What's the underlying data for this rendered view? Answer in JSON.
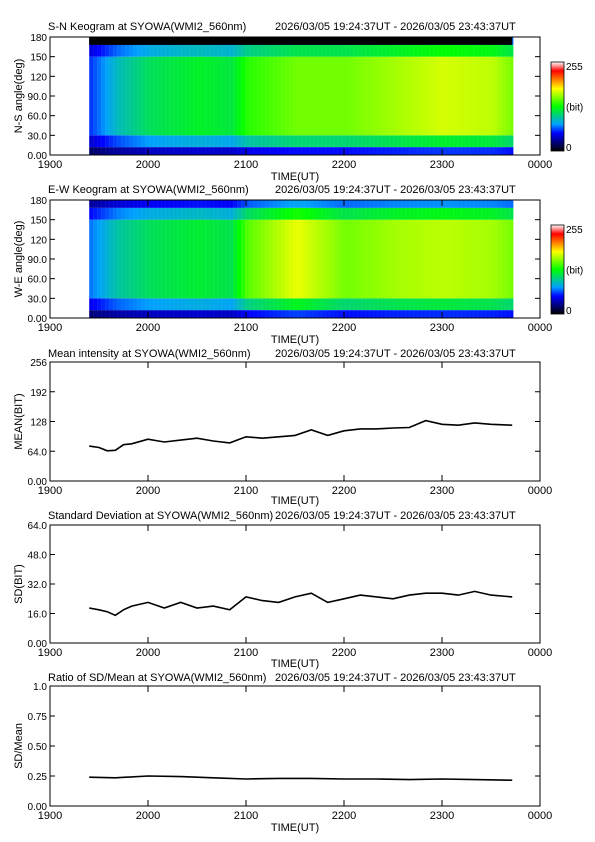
{
  "meta": {
    "station": "SYOWA(WMI2_560nm)",
    "time_range": "2026/03/05 19:24:37UT - 2026/03/05 23:43:37UT"
  },
  "colorbar": {
    "max_label": "255",
    "unit_label": "(bit)",
    "min_label": "0",
    "stops": [
      "#000000",
      "#000080",
      "#0000ff",
      "#00a0ff",
      "#00d080",
      "#00ff00",
      "#80ff00",
      "#ffff00",
      "#ff8000",
      "#ff0000",
      "#ffffff"
    ]
  },
  "x_axis": {
    "ticks": [
      "1900",
      "2000",
      "2100",
      "2200",
      "2300",
      "0000"
    ],
    "xlabel": "TIME(UT)",
    "range_hours": [
      19,
      24
    ]
  },
  "chart_data": [
    {
      "type": "heatmap",
      "title": "S-N Keogram at SYOWA(WMI2_560nm)",
      "time_range": "2026/03/05 19:24:37UT - 2026/03/05 23:43:37UT",
      "ylabel": "N-S angle(deg)",
      "yticks": [
        "0.00",
        "30.0",
        "60.0",
        "90.0",
        "120",
        "150",
        "180"
      ],
      "ylim": [
        0,
        180
      ],
      "data_start": "19:24:37",
      "data_end": "23:43:37",
      "missing_top_band_deg": [
        168,
        180
      ],
      "intensity_profile": {
        "times_ut": [
          "19:24",
          "19:40",
          "20:00",
          "20:30",
          "20:50",
          "21:00",
          "21:30",
          "22:00",
          "22:30",
          "23:00",
          "23:30",
          "23:43"
        ],
        "center_level": [
          60,
          90,
          110,
          120,
          115,
          135,
          150,
          150,
          160,
          170,
          165,
          150
        ]
      }
    },
    {
      "type": "heatmap",
      "title": "E-W Keogram at SYOWA(WMI2_560nm)",
      "time_range": "2026/03/05 19:24:37UT - 2026/03/05 23:43:37UT",
      "ylabel": "W-E angle(deg)",
      "yticks": [
        "0.00",
        "30.0",
        "60.0",
        "90.0",
        "120",
        "150",
        "180"
      ],
      "ylim": [
        0,
        180
      ],
      "data_start": "19:24:37",
      "data_end": "23:43:37",
      "intensity_profile": {
        "times_ut": [
          "19:24",
          "19:40",
          "20:00",
          "20:30",
          "20:50",
          "21:00",
          "21:30",
          "22:00",
          "22:30",
          "23:00",
          "23:30",
          "23:43"
        ],
        "center_level": [
          70,
          95,
          110,
          118,
          112,
          145,
          175,
          150,
          160,
          165,
          160,
          150
        ]
      }
    },
    {
      "type": "line",
      "title": "Mean intensity at SYOWA(WMI2_560nm)",
      "time_range": "2026/03/05 19:24:37UT - 2026/03/05 23:43:37UT",
      "ylabel": "MEAN(BIT)",
      "yticks": [
        "0.00",
        "64.0",
        "128",
        "192",
        "256"
      ],
      "ylim": [
        0,
        256
      ],
      "series": [
        {
          "x_ut": [
            "19:24",
            "19:30",
            "19:35",
            "19:40",
            "19:45",
            "19:50",
            "20:00",
            "20:10",
            "20:20",
            "20:30",
            "20:40",
            "20:50",
            "21:00",
            "21:10",
            "21:20",
            "21:30",
            "21:40",
            "21:50",
            "22:00",
            "22:10",
            "22:20",
            "22:30",
            "22:40",
            "22:50",
            "23:00",
            "23:10",
            "23:20",
            "23:30",
            "23:43"
          ],
          "values": [
            75,
            72,
            65,
            66,
            78,
            80,
            90,
            84,
            88,
            92,
            86,
            82,
            95,
            92,
            95,
            98,
            110,
            98,
            108,
            112,
            112,
            114,
            115,
            130,
            122,
            120,
            125,
            122,
            120
          ]
        }
      ]
    },
    {
      "type": "line",
      "title": "Standard Deviation at SYOWA(WMI2_560nm)",
      "time_range": "2026/03/05 19:24:37UT - 2026/03/05 23:43:37UT",
      "ylabel": "SD(BIT)",
      "yticks": [
        "0.00",
        "16.0",
        "32.0",
        "48.0",
        "64.0"
      ],
      "ylim": [
        0,
        64
      ],
      "series": [
        {
          "x_ut": [
            "19:24",
            "19:30",
            "19:35",
            "19:40",
            "19:45",
            "19:50",
            "20:00",
            "20:10",
            "20:20",
            "20:30",
            "20:40",
            "20:50",
            "21:00",
            "21:10",
            "21:20",
            "21:30",
            "21:40",
            "21:50",
            "22:00",
            "22:10",
            "22:20",
            "22:30",
            "22:40",
            "22:50",
            "23:00",
            "23:10",
            "23:20",
            "23:30",
            "23:43"
          ],
          "values": [
            19,
            18,
            17,
            15,
            18,
            20,
            22,
            19,
            22,
            19,
            20,
            18,
            25,
            23,
            22,
            25,
            27,
            22,
            24,
            26,
            25,
            24,
            26,
            27,
            27,
            26,
            28,
            26,
            25
          ]
        }
      ]
    },
    {
      "type": "line",
      "title": "Ratio of SD/Mean at SYOWA(WMI2_560nm)",
      "time_range": "2026/03/05 19:24:37UT - 2026/03/05 23:43:37UT",
      "ylabel": "SD/Mean",
      "yticks": [
        "0.00",
        "0.25",
        "0.50",
        "0.75",
        "1.0"
      ],
      "ylim": [
        0,
        1
      ],
      "xlabel": "TIME(UT)",
      "series": [
        {
          "x_ut": [
            "19:24",
            "19:40",
            "20:00",
            "20:20",
            "20:40",
            "21:00",
            "21:20",
            "21:40",
            "22:00",
            "22:20",
            "22:40",
            "23:00",
            "23:20",
            "23:43"
          ],
          "values": [
            0.24,
            0.235,
            0.25,
            0.245,
            0.235,
            0.225,
            0.23,
            0.23,
            0.225,
            0.225,
            0.22,
            0.225,
            0.22,
            0.215
          ]
        }
      ]
    }
  ]
}
